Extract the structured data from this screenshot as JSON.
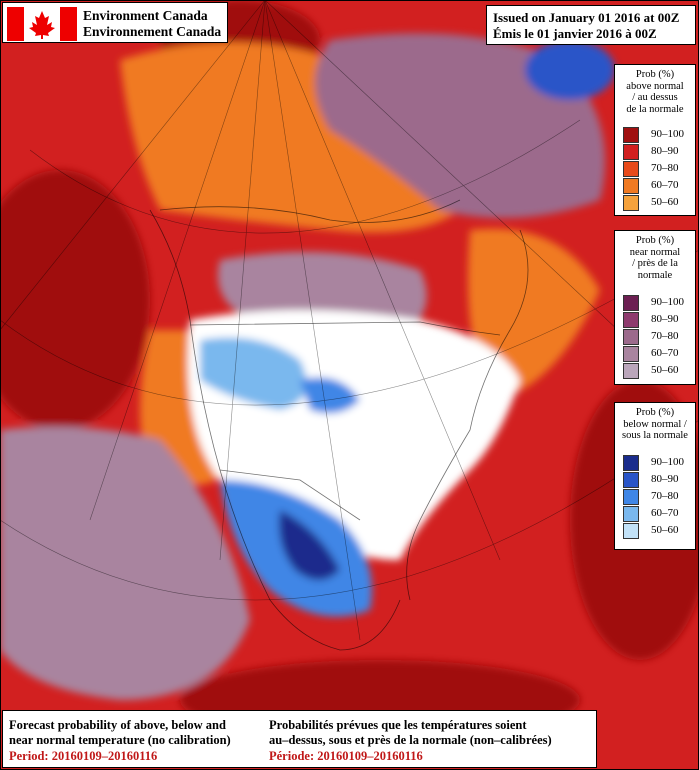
{
  "header": {
    "agency_en": "Environment Canada",
    "agency_fr": "Environnement Canada",
    "issued_en": "Issued on January 01 2016 at 00Z",
    "issued_fr": "Émis le 01 janvier 2016 à 00Z"
  },
  "legends": {
    "above": {
      "title": [
        "Prob (%)",
        "above normal",
        "/ au dessus",
        "de la normale"
      ],
      "classes": [
        {
          "label": "90–100",
          "color": "#a01010"
        },
        {
          "label": "80–90",
          "color": "#d22020"
        },
        {
          "label": "70–80",
          "color": "#e84a1a"
        },
        {
          "label": "60–70",
          "color": "#f07a22"
        },
        {
          "label": "50–60",
          "color": "#f5a23c"
        }
      ]
    },
    "near": {
      "title": [
        "Prob (%)",
        "near normal",
        "/ près de la",
        "normale"
      ],
      "classes": [
        {
          "label": "90–100",
          "color": "#6c1f52"
        },
        {
          "label": "80–90",
          "color": "#8e3a6e"
        },
        {
          "label": "70–80",
          "color": "#9c6a8c"
        },
        {
          "label": "60–70",
          "color": "#a9849f"
        },
        {
          "label": "50–60",
          "color": "#bba6bb"
        }
      ]
    },
    "below": {
      "title": [
        "Prob (%)",
        "below normal /",
        "sous la normale"
      ],
      "classes": [
        {
          "label": "90–100",
          "color": "#1a2c8c"
        },
        {
          "label": "80–90",
          "color": "#2a55c8"
        },
        {
          "label": "70–80",
          "color": "#3f86e6"
        },
        {
          "label": "60–70",
          "color": "#7ab8ee"
        },
        {
          "label": "50–60",
          "color": "#c2e2f8"
        }
      ]
    }
  },
  "footer": {
    "en_line1": "Forecast probability of above, below and",
    "en_line2": "near normal temperature (no calibration)",
    "en_period": "Period: 20160109–20160116",
    "fr_line1": "Probabilités prévues que les températures soient",
    "fr_line2": "au–dessus, sous et près de la normale (non–calibrées)",
    "fr_period": "Période: 20160109–20160116"
  }
}
